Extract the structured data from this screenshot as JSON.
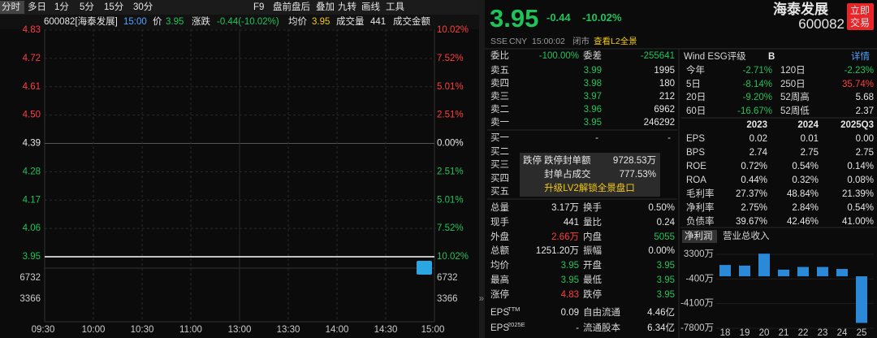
{
  "toolbar": {
    "left": [
      "分时",
      "多日",
      "1分",
      "5分",
      "15分",
      "30分"
    ],
    "right": [
      "F9",
      "盘前盘后",
      "叠加",
      "九转",
      "画线",
      "工具"
    ]
  },
  "info_bar": {
    "code": "600082[海泰发展]",
    "time": "15:00",
    "price_label": "价",
    "price": "3.95",
    "change_label": "涨跌",
    "change": "-0.44(-10.02%)",
    "avg_label": "均价",
    "avg": "3.95",
    "volume_label": "成交量",
    "volume": "441",
    "amount_label": "成交金额"
  },
  "intraday": {
    "price_ticks": [
      4.83,
      4.72,
      4.61,
      {
        "value": 4.5,
        "label": "4.50"
      },
      4.39,
      4.28,
      4.17,
      4.06,
      3.95
    ],
    "pct_ticks": [
      "10.02%",
      "7.52%",
      "5.01%",
      "2.51%",
      "0.00%",
      "2.51%",
      "5.01%",
      "7.52%",
      "10.02%"
    ],
    "volume_ticks": [
      6732,
      3366
    ],
    "times": [
      "09:30",
      "10:00",
      "10:30",
      "11:00",
      "13:00",
      "13:30",
      "14:00",
      "14:30",
      "15:00"
    ],
    "price": 3.95
  },
  "quote": {
    "price": "3.95",
    "change": "-0.44",
    "change_pct": "-10.02%",
    "name": "海泰发展",
    "code": "600082",
    "trade_button": [
      "立即",
      "交易"
    ],
    "exchange": "SSE",
    "currency": "CNY",
    "time": "15:00:02",
    "status": "闭市",
    "l2_link": "查看L2全景"
  },
  "order_book": {
    "ratio": [
      "委比",
      "-100.00%",
      "委差",
      "-255641"
    ],
    "asks": [
      [
        "卖五",
        "3.99",
        "1995"
      ],
      [
        "卖四",
        "3.98",
        "180"
      ],
      [
        "卖三",
        "3.97",
        "212"
      ],
      [
        "卖二",
        "3.96",
        "6962"
      ],
      [
        "卖一",
        "3.95",
        "246292"
      ]
    ],
    "bids": [
      [
        "买一",
        "-",
        "-"
      ],
      [
        "买二"
      ],
      [
        "买三"
      ],
      [
        "买四"
      ],
      [
        "买五"
      ]
    ],
    "popup": {
      "limit": "跌停",
      "rows": [
        [
          "跌停封单额",
          "9728.53万"
        ],
        [
          "封单占成交",
          "777.53%"
        ]
      ],
      "upgrade": "升级LV2解锁全景盘口"
    }
  },
  "stats": [
    [
      "总量",
      "3.17万",
      "换手",
      "0.50%"
    ],
    [
      "现手",
      "441",
      "量比",
      "0.24"
    ],
    [
      "外盘",
      "2.66万",
      "内盘",
      "5055"
    ],
    [
      "总额",
      "1251.20万",
      "振幅",
      "0.00%"
    ],
    [
      "均价",
      "3.95",
      "开盘",
      "3.95"
    ],
    [
      "最高",
      "3.95",
      "最低",
      "3.95"
    ],
    [
      "涨停",
      "4.83",
      "跌停",
      "3.95"
    ]
  ],
  "eps": [
    {
      "label": "EPS",
      "sup": "TTM",
      "value": "0.09",
      "label2": "自由流通",
      "value2": "4.46亿"
    },
    {
      "label": "EPS",
      "sup": "2025E",
      "value": "-",
      "label2": "流通股本",
      "value2": "6.34亿"
    }
  ],
  "esg": {
    "label": "Wind ESG评级",
    "rating": "B",
    "link": "详情"
  },
  "returns": [
    [
      "今年",
      "-2.71%",
      "120日",
      "-2.23%"
    ],
    [
      "5日",
      "-8.14%",
      "250日",
      "35.74%"
    ],
    [
      "20日",
      "-9.20%",
      "52周高",
      "5.68"
    ],
    [
      "60日",
      "-16.67%",
      "52周低",
      "2.37"
    ]
  ],
  "financials": {
    "columns": [
      "2023",
      "2024",
      "2025Q3"
    ],
    "rows": [
      [
        "EPS",
        "0.02",
        "0.01",
        "0.00"
      ],
      [
        "BPS",
        "2.74",
        "2.75",
        "2.75"
      ],
      [
        "ROE",
        "0.72%",
        "0.54%",
        "0.14%"
      ],
      [
        "ROA",
        "0.44%",
        "0.32%",
        "0.08%"
      ],
      [
        "毛利率",
        "27.37%",
        "48.84%",
        "21.39%"
      ],
      [
        "净利率",
        "2.75%",
        "2.84%",
        "0.54%"
      ],
      [
        "负债率",
        "39.67%",
        "42.46%",
        "41.00%"
      ]
    ]
  },
  "profit_chart": {
    "tabs": [
      "净利润",
      "营业总收入"
    ],
    "yticks": [
      {
        "value": 3300,
        "label": "3300万"
      },
      {
        "value": -400,
        "label": "-400万"
      },
      {
        "value": -4100,
        "label": "-4100万"
      },
      {
        "value": -7800,
        "label": "-7800万"
      }
    ],
    "categories": [
      "18",
      "19",
      "20",
      "21",
      "22",
      "23",
      "24",
      "25"
    ],
    "values": [
      1700,
      1600,
      3400,
      1000,
      1400,
      1400,
      1100,
      -7000
    ]
  }
}
